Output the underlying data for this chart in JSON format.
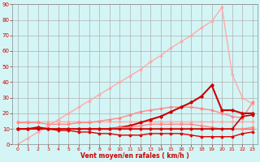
{
  "xlabel": "Vent moyen/en rafales ( km/h )",
  "background_color": "#d4f5f5",
  "grid_color": "#b0b0b0",
  "xlim": [
    -0.5,
    23.5
  ],
  "ylim": [
    0,
    90
  ],
  "yticks": [
    0,
    10,
    20,
    30,
    40,
    50,
    60,
    70,
    80,
    90
  ],
  "xticks": [
    0,
    1,
    2,
    3,
    4,
    5,
    6,
    7,
    8,
    9,
    10,
    11,
    12,
    13,
    14,
    15,
    16,
    17,
    18,
    19,
    20,
    21,
    22,
    23
  ],
  "lines": [
    {
      "x": [
        0,
        1,
        2,
        3,
        4,
        5,
        6,
        7,
        8,
        9,
        10,
        11,
        12,
        13,
        14,
        15,
        16,
        17,
        18,
        19,
        20,
        21,
        22,
        23
      ],
      "y": [
        0,
        4,
        8,
        12,
        16,
        20,
        24,
        28,
        32,
        36,
        40,
        44,
        48,
        53,
        57,
        62,
        66,
        70,
        75,
        79,
        88,
        45,
        30,
        26
      ],
      "color": "#ffaaaa",
      "lw": 1.0,
      "marker": "D",
      "ms": 1.5
    },
    {
      "x": [
        0,
        1,
        2,
        3,
        4,
        5,
        6,
        7,
        8,
        9,
        10,
        11,
        12,
        13,
        14,
        15,
        16,
        17,
        18,
        19,
        20,
        21,
        22,
        23
      ],
      "y": [
        15,
        15,
        15,
        15,
        15,
        15,
        15,
        15,
        15,
        15,
        15,
        15,
        15,
        15,
        15,
        15,
        15,
        15,
        15,
        15,
        15,
        15,
        15,
        15
      ],
      "color": "#ffaaaa",
      "lw": 1.0,
      "marker": "D",
      "ms": 1.5
    },
    {
      "x": [
        0,
        1,
        2,
        3,
        4,
        5,
        6,
        7,
        8,
        9,
        10,
        11,
        12,
        13,
        14,
        15,
        16,
        17,
        18,
        19,
        20,
        21,
        22,
        23
      ],
      "y": [
        14,
        14,
        14,
        13,
        13,
        13,
        14,
        14,
        15,
        16,
        17,
        19,
        21,
        22,
        23,
        24,
        24,
        24,
        23,
        22,
        20,
        18,
        17,
        27
      ],
      "color": "#ff8888",
      "lw": 1.0,
      "marker": "D",
      "ms": 1.5
    },
    {
      "x": [
        0,
        1,
        2,
        3,
        4,
        5,
        6,
        7,
        8,
        9,
        10,
        11,
        12,
        13,
        14,
        15,
        16,
        17,
        18,
        19,
        20,
        21,
        22,
        23
      ],
      "y": [
        10,
        10,
        11,
        10,
        10,
        10,
        10,
        10,
        10,
        10,
        11,
        12,
        14,
        16,
        18,
        21,
        24,
        27,
        31,
        38,
        22,
        22,
        20,
        20
      ],
      "color": "#cc0000",
      "lw": 1.5,
      "marker": "D",
      "ms": 1.8
    },
    {
      "x": [
        0,
        1,
        2,
        3,
        4,
        5,
        6,
        7,
        8,
        9,
        10,
        11,
        12,
        13,
        14,
        15,
        16,
        17,
        18,
        19,
        20,
        21,
        22,
        23
      ],
      "y": [
        10,
        10,
        10,
        10,
        10,
        10,
        10,
        10,
        10,
        10,
        10,
        10,
        10,
        10,
        10,
        10,
        10,
        10,
        10,
        10,
        10,
        10,
        10,
        10
      ],
      "color": "#ff6666",
      "lw": 1.0,
      "marker": "D",
      "ms": 1.5
    },
    {
      "x": [
        0,
        1,
        2,
        3,
        4,
        5,
        6,
        7,
        8,
        9,
        10,
        11,
        12,
        13,
        14,
        15,
        16,
        17,
        18,
        19,
        20,
        21,
        22,
        23
      ],
      "y": [
        10,
        10,
        10,
        10,
        10,
        10,
        10,
        10,
        10,
        10,
        11,
        11,
        12,
        13,
        13,
        13,
        13,
        13,
        12,
        11,
        10,
        10,
        10,
        11
      ],
      "color": "#ff8888",
      "lw": 1.0,
      "marker": "D",
      "ms": 1.5
    },
    {
      "x": [
        0,
        1,
        2,
        3,
        4,
        5,
        6,
        7,
        8,
        9,
        10,
        11,
        12,
        13,
        14,
        15,
        16,
        17,
        18,
        19,
        20,
        21,
        22,
        23
      ],
      "y": [
        10,
        10,
        10,
        10,
        9,
        9,
        8,
        8,
        7,
        7,
        6,
        6,
        6,
        7,
        7,
        7,
        7,
        6,
        5,
        5,
        5,
        5,
        7,
        8
      ],
      "color": "#dd0000",
      "lw": 1.0,
      "marker": "D",
      "ms": 1.5
    },
    {
      "x": [
        0,
        1,
        2,
        3,
        4,
        5,
        6,
        7,
        8,
        9,
        10,
        11,
        12,
        13,
        14,
        15,
        16,
        17,
        18,
        19,
        20,
        21,
        22,
        23
      ],
      "y": [
        10,
        10,
        10,
        10,
        10,
        10,
        10,
        10,
        10,
        10,
        10,
        10,
        10,
        10,
        10,
        10,
        10,
        10,
        10,
        10,
        10,
        10,
        18,
        19
      ],
      "color": "#cc0000",
      "lw": 1.2,
      "marker": "D",
      "ms": 1.5
    }
  ]
}
